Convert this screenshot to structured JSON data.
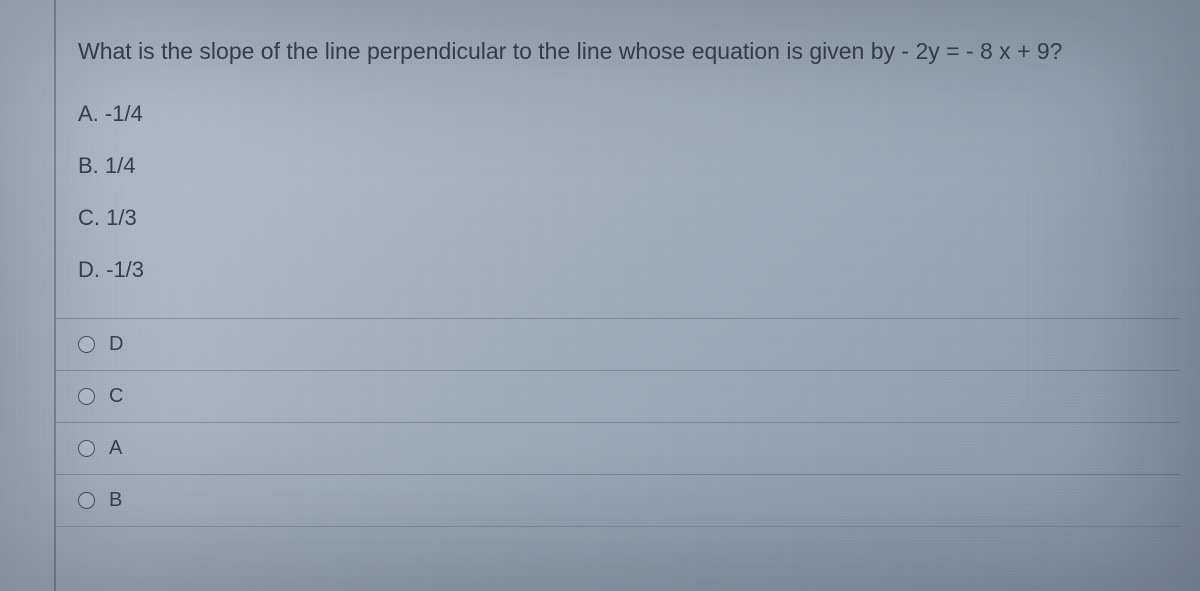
{
  "question": {
    "prompt": "What is the slope of the line perpendicular to the line whose equation is given by - 2y = - 8 x + 9?",
    "answers": {
      "a": {
        "letter": "A.",
        "value": "-1/4"
      },
      "b": {
        "letter": "B.",
        "value": "1/4"
      },
      "c": {
        "letter": "C.",
        "value": "1/3"
      },
      "d": {
        "letter": "D.",
        "value": "-1/3"
      }
    }
  },
  "options": {
    "opt1": "D",
    "opt2": "C",
    "opt3": "A",
    "opt4": "B"
  },
  "colors": {
    "text": "#35424f",
    "border": "rgba(70,80,95,0.35)",
    "bg_start": "#b8c4d0",
    "bg_end": "#8898aa"
  },
  "typography": {
    "question_fontsize": 23,
    "answer_fontsize": 22,
    "option_fontsize": 20,
    "font_family": "Arial, sans-serif"
  }
}
